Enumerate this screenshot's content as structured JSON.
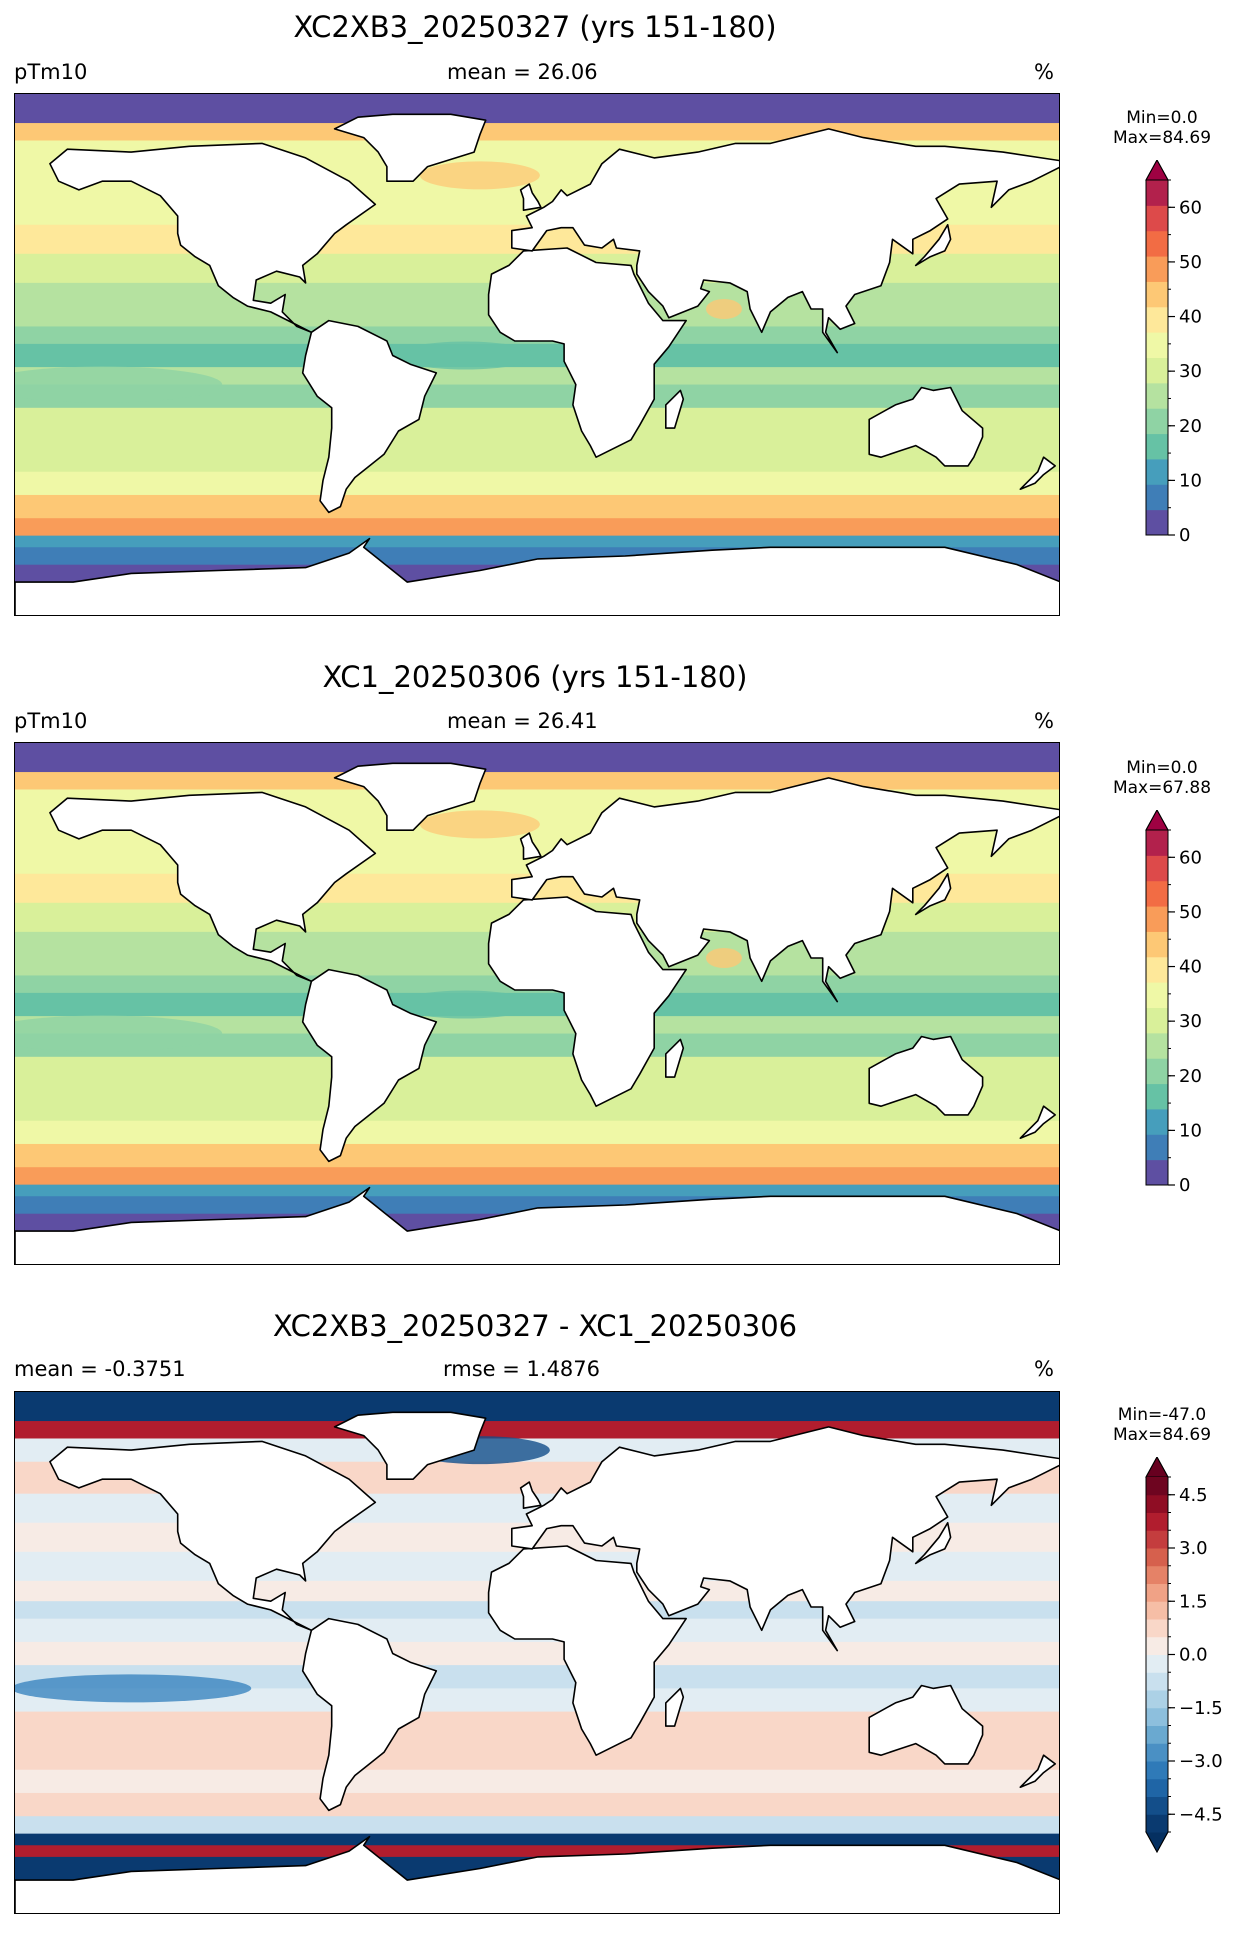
{
  "panels": [
    {
      "title": "XC2XB3_20250327 (yrs 151-180)",
      "left_label": "pTm10",
      "center_label": "mean = 26.06",
      "units": "%",
      "minmax": "Min=0.0\nMax=84.69",
      "colorbar": {
        "cmap": "Spectral_r",
        "vmin": 0,
        "vmax": 65,
        "levels": [
          0,
          5,
          10,
          15,
          20,
          25,
          30,
          35,
          40,
          45,
          50,
          55,
          60,
          65
        ],
        "colors": [
          "#5e4fa2",
          "#3f7eb7",
          "#469ebc",
          "#66c2a5",
          "#8fd3a4",
          "#b5e2a0",
          "#d9f09a",
          "#eff8a6",
          "#fee89a",
          "#fdc875",
          "#f99c59",
          "#f26c44",
          "#dd4a4a",
          "#b2214c"
        ],
        "extend_max_color": "#9e0142",
        "ticks": [
          "0",
          "10",
          "20",
          "30",
          "40",
          "50",
          "60"
        ],
        "tick_values": [
          0,
          10,
          20,
          30,
          40,
          50,
          60
        ]
      }
    },
    {
      "title": "XC1_20250306 (yrs 151-180)",
      "left_label": "pTm10",
      "center_label": "mean = 26.41",
      "units": "%",
      "minmax": "Min=0.0\nMax=67.88",
      "colorbar": {
        "cmap": "Spectral_r",
        "vmin": 0,
        "vmax": 65,
        "levels": [
          0,
          5,
          10,
          15,
          20,
          25,
          30,
          35,
          40,
          45,
          50,
          55,
          60,
          65
        ],
        "colors": [
          "#5e4fa2",
          "#3f7eb7",
          "#469ebc",
          "#66c2a5",
          "#8fd3a4",
          "#b5e2a0",
          "#d9f09a",
          "#eff8a6",
          "#fee89a",
          "#fdc875",
          "#f99c59",
          "#f26c44",
          "#dd4a4a",
          "#b2214c"
        ],
        "extend_max_color": "#9e0142",
        "ticks": [
          "0",
          "10",
          "20",
          "30",
          "40",
          "50",
          "60"
        ],
        "tick_values": [
          0,
          10,
          20,
          30,
          40,
          50,
          60
        ]
      }
    },
    {
      "title": "XC2XB3_20250327 - XC1_20250306",
      "left_label": "mean = -0.3751",
      "center_label": "rmse = 1.4876",
      "units": "%",
      "minmax": "Min=-47.0\nMax=84.69",
      "colorbar": {
        "cmap": "RdBu_r",
        "vmin": -5,
        "vmax": 5,
        "levels": [
          -5,
          -4.5,
          -4,
          -3.5,
          -3,
          -2.5,
          -2,
          -1.5,
          -1,
          -0.5,
          0,
          0.5,
          1,
          1.5,
          2,
          2.5,
          3,
          3.5,
          4,
          4.5,
          5
        ],
        "colors": [
          "#0a3a70",
          "#134e8a",
          "#1f65a6",
          "#2f7ab8",
          "#4a90c4",
          "#6aa9d0",
          "#8dbfdd",
          "#acd1e6",
          "#c9e0ee",
          "#e2edf3",
          "#f7ebe5",
          "#f9d7c8",
          "#f6bea6",
          "#f0a286",
          "#e58267",
          "#d6604d",
          "#c43d3e",
          "#b11d2e",
          "#8f0d24",
          "#6e0520"
        ],
        "extend_min_color": "#053061",
        "extend_max_color": "#67001f",
        "ticks": [
          "−4.5",
          "−3.0",
          "−1.5",
          "0.0",
          "1.5",
          "3.0",
          "4.5"
        ],
        "tick_values": [
          -4.5,
          -3.0,
          -1.5,
          0.0,
          1.5,
          3.0,
          4.5
        ]
      }
    }
  ]
}
